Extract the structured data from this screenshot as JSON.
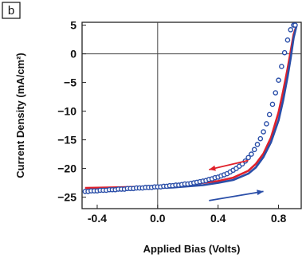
{
  "panel_label": "b",
  "chart_data": {
    "type": "line",
    "xlabel": "Applied Bias (Volts)",
    "ylabel": "Current Density (mA/cm²)",
    "xlim": [
      -0.5,
      0.95
    ],
    "ylim": [
      -27,
      5.5
    ],
    "x_ticks": [
      -0.4,
      0.0,
      0.4,
      0.8
    ],
    "x_tick_labels": [
      "-0.4",
      "0.0",
      "0.4",
      "0.8"
    ],
    "y_ticks": [
      5,
      0,
      -5,
      -10,
      -15,
      -20,
      -25
    ],
    "y_tick_labels": [
      "5",
      "0",
      "−5",
      "−10",
      "−15",
      "−20",
      "−25"
    ],
    "zero_lines": true,
    "colors": {
      "red": "#e0202a",
      "blue": "#2a4ea8",
      "marker_fill": "#ffffff"
    },
    "series": [
      {
        "style": "line",
        "color": "#e0202a",
        "direction": "reverse sweep",
        "x": [
          -0.48,
          -0.3,
          -0.1,
          0.0,
          0.1,
          0.2,
          0.3,
          0.4,
          0.5,
          0.6,
          0.65,
          0.7,
          0.75,
          0.8,
          0.83,
          0.86,
          0.88,
          0.9,
          0.92
        ],
        "y": [
          -23.4,
          -23.3,
          -23.2,
          -23.1,
          -23.0,
          -22.8,
          -22.5,
          -22.2,
          -21.6,
          -20.4,
          -19.2,
          -17.4,
          -14.6,
          -10.2,
          -6.6,
          -2.6,
          0.4,
          3.4,
          5.0
        ]
      },
      {
        "style": "line",
        "color": "#2a4ea8",
        "direction": "forward sweep",
        "x": [
          -0.48,
          -0.3,
          -0.1,
          0.0,
          0.1,
          0.2,
          0.3,
          0.4,
          0.5,
          0.6,
          0.65,
          0.7,
          0.75,
          0.8,
          0.83,
          0.86,
          0.88,
          0.9,
          0.92
        ],
        "y": [
          -23.8,
          -23.7,
          -23.5,
          -23.4,
          -23.3,
          -23.1,
          -22.9,
          -22.5,
          -22.0,
          -20.9,
          -19.8,
          -18.0,
          -15.4,
          -11.6,
          -8.2,
          -4.0,
          -0.8,
          2.8,
          5.0
        ]
      },
      {
        "style": "markers",
        "color": "#2a4ea8",
        "x": [
          -0.48,
          -0.46,
          -0.44,
          -0.42,
          -0.4,
          -0.38,
          -0.36,
          -0.34,
          -0.32,
          -0.3,
          -0.28,
          -0.26,
          -0.24,
          -0.22,
          -0.2,
          -0.18,
          -0.16,
          -0.14,
          -0.12,
          -0.1,
          -0.08,
          -0.06,
          -0.04,
          -0.02,
          0.0,
          0.02,
          0.04,
          0.06,
          0.08,
          0.1,
          0.12,
          0.14,
          0.16,
          0.18,
          0.2,
          0.22,
          0.24,
          0.26,
          0.28,
          0.3,
          0.32,
          0.34,
          0.36,
          0.38,
          0.4,
          0.42,
          0.44,
          0.46,
          0.48,
          0.5,
          0.52,
          0.54,
          0.56,
          0.58,
          0.6,
          0.62,
          0.64,
          0.66,
          0.68,
          0.7,
          0.72,
          0.74,
          0.76,
          0.78,
          0.8,
          0.82,
          0.84,
          0.86,
          0.88,
          0.9,
          0.91
        ],
        "y": [
          -24.0,
          -24.0,
          -23.9,
          -23.9,
          -23.9,
          -23.8,
          -23.8,
          -23.8,
          -23.7,
          -23.7,
          -23.7,
          -23.6,
          -23.6,
          -23.6,
          -23.5,
          -23.5,
          -23.5,
          -23.4,
          -23.4,
          -23.4,
          -23.3,
          -23.3,
          -23.3,
          -23.2,
          -23.2,
          -23.2,
          -23.1,
          -23.1,
          -23.0,
          -23.0,
          -22.9,
          -22.9,
          -22.8,
          -22.7,
          -22.7,
          -22.6,
          -22.5,
          -22.4,
          -22.3,
          -22.2,
          -22.1,
          -21.9,
          -21.8,
          -21.6,
          -21.5,
          -21.3,
          -21.1,
          -20.9,
          -20.6,
          -20.3,
          -20.0,
          -19.6,
          -19.2,
          -18.7,
          -18.1,
          -17.5,
          -16.7,
          -15.8,
          -14.8,
          -13.6,
          -12.2,
          -10.6,
          -8.8,
          -6.8,
          -4.6,
          -2.2,
          0.2,
          2.4,
          4.2,
          5.0,
          5.0
        ]
      }
    ],
    "annotations": [
      {
        "type": "arrow",
        "color": "#e0202a",
        "direction": "left",
        "from": [
          0.6,
          -18.6
        ],
        "to": [
          0.34,
          -20.2
        ]
      },
      {
        "type": "arrow",
        "color": "#2a4ea8",
        "direction": "right",
        "from": [
          0.34,
          -25.6
        ],
        "to": [
          0.7,
          -24.0
        ]
      }
    ]
  }
}
